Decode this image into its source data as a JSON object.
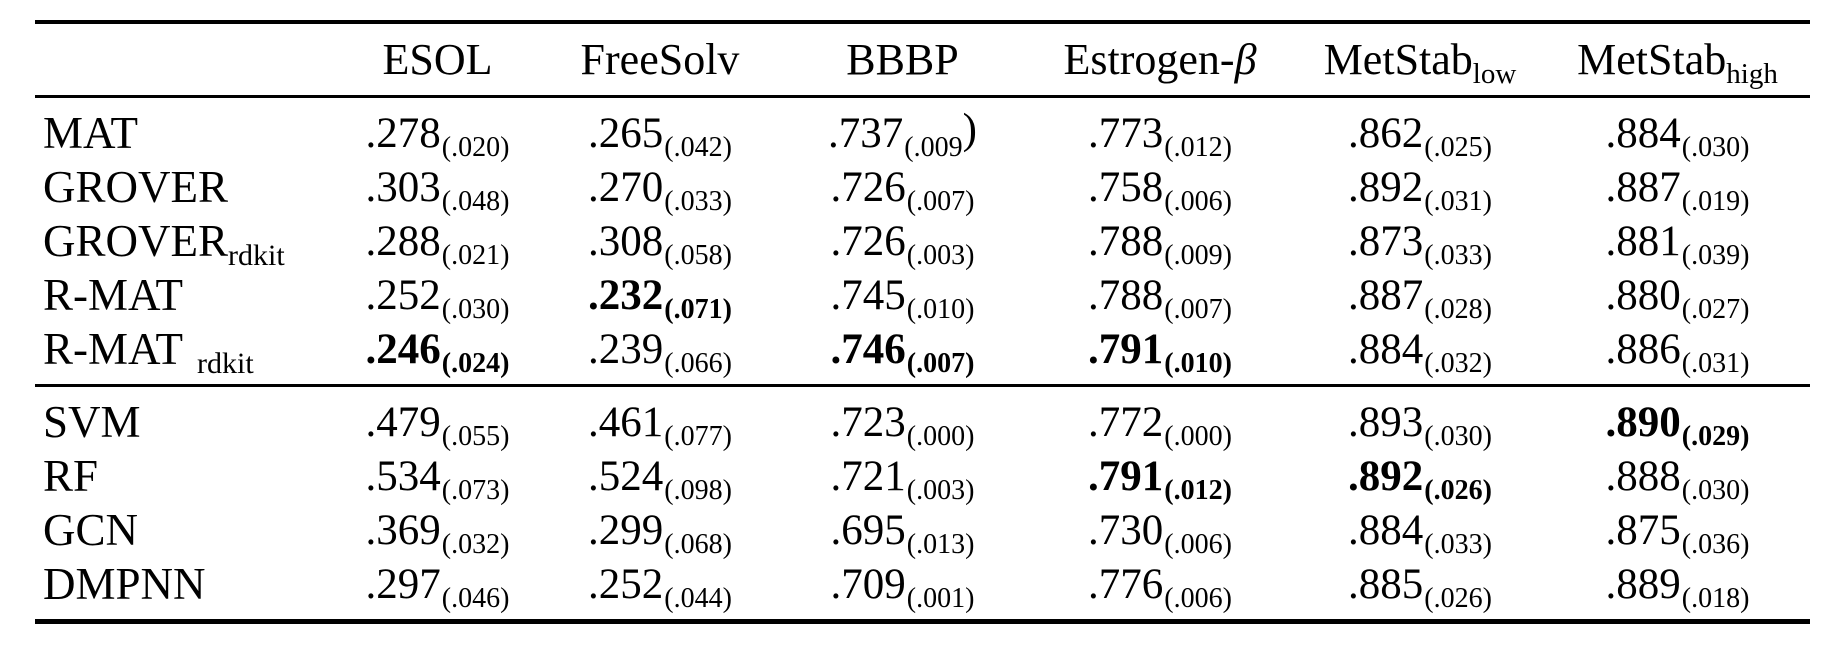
{
  "colors": {
    "text": "#000000",
    "background": "#ffffff",
    "rule": "#000000"
  },
  "table": {
    "headers": [
      {
        "label": ""
      },
      {
        "label": "ESOL"
      },
      {
        "label": "FreeSolv"
      },
      {
        "label": "BBBP"
      },
      {
        "label": "Estrogen-",
        "beta": "β"
      },
      {
        "label": "MetStab",
        "sub": "low"
      },
      {
        "label": "MetStab",
        "sub": "high"
      }
    ],
    "g1": [
      {
        "label": "MAT",
        "cells": [
          {
            "v": ".278",
            "s": "(.020)"
          },
          {
            "v": ".265",
            "s": "(.042)"
          },
          {
            "v": ".737",
            "s": "(.009",
            "t": ")"
          },
          {
            "v": ".773",
            "s": "(.012)"
          },
          {
            "v": ".862",
            "s": "(.025)"
          },
          {
            "v": ".884",
            "s": "(.030)"
          }
        ]
      },
      {
        "label": "GROVER",
        "cells": [
          {
            "v": ".303",
            "s": "(.048)"
          },
          {
            "v": ".270",
            "s": "(.033)"
          },
          {
            "v": ".726",
            "s": "(.007)"
          },
          {
            "v": ".758",
            "s": "(.006)"
          },
          {
            "v": ".892",
            "s": "(.031)"
          },
          {
            "v": ".887",
            "s": "(.019)"
          }
        ]
      },
      {
        "label": "GROVER",
        "sub": "rdkit",
        "cells": [
          {
            "v": ".288",
            "s": "(.021)"
          },
          {
            "v": ".308",
            "s": "(.058)"
          },
          {
            "v": ".726",
            "s": "(.003)"
          },
          {
            "v": ".788",
            "s": "(.009)"
          },
          {
            "v": ".873",
            "s": "(.033)"
          },
          {
            "v": ".881",
            "s": "(.039)"
          }
        ]
      },
      {
        "label": "R-MAT",
        "cells": [
          {
            "v": ".252",
            "s": "(.030)"
          },
          {
            "v": ".232",
            "s": "(.071)",
            "bold": true
          },
          {
            "v": ".745",
            "s": "(.010)"
          },
          {
            "v": ".788",
            "s": "(.007)"
          },
          {
            "v": ".887",
            "s": "(.028)"
          },
          {
            "v": ".880",
            "s": "(.027)"
          }
        ]
      },
      {
        "label": "R-MAT",
        "sub": "rdkit",
        "gap": true,
        "cells": [
          {
            "v": ".246",
            "s": "(.024)",
            "bold": true
          },
          {
            "v": ".239",
            "s": "(.066)"
          },
          {
            "v": ".746",
            "s": "(.007)",
            "bold": true
          },
          {
            "v": ".791",
            "s": "(.010)",
            "bold": true
          },
          {
            "v": ".884",
            "s": "(.032)"
          },
          {
            "v": ".886",
            "s": "(.031)"
          }
        ]
      }
    ],
    "g2": [
      {
        "label": "SVM",
        "cells": [
          {
            "v": ".479",
            "s": "(.055)"
          },
          {
            "v": ".461",
            "s": "(.077)"
          },
          {
            "v": ".723",
            "s": "(.000)"
          },
          {
            "v": ".772",
            "s": "(.000)"
          },
          {
            "v": ".893",
            "s": "(.030)"
          },
          {
            "v": ".890",
            "s": "(.029)",
            "bold": true
          }
        ]
      },
      {
        "label": "RF",
        "cells": [
          {
            "v": ".534",
            "s": "(.073)"
          },
          {
            "v": ".524",
            "s": "(.098)"
          },
          {
            "v": ".721",
            "s": "(.003)"
          },
          {
            "v": ".791",
            "s": "(.012)",
            "bold": true
          },
          {
            "v": ".892",
            "s": "(.026)",
            "bold": true
          },
          {
            "v": ".888",
            "s": "(.030)"
          }
        ]
      },
      {
        "label": "GCN",
        "cells": [
          {
            "v": ".369",
            "s": "(.032)"
          },
          {
            "v": ".299",
            "s": "(.068)"
          },
          {
            "v": ".695",
            "s": "(.013)"
          },
          {
            "v": ".730",
            "s": "(.006)"
          },
          {
            "v": ".884",
            "s": "(.033)"
          },
          {
            "v": ".875",
            "s": "(.036)"
          }
        ]
      },
      {
        "label": "DMPNN",
        "cells": [
          {
            "v": ".297",
            "s": "(.046)"
          },
          {
            "v": ".252",
            "s": "(.044)"
          },
          {
            "v": ".709",
            "s": "(.001)"
          },
          {
            "v": ".776",
            "s": "(.006)"
          },
          {
            "v": ".885",
            "s": "(.026)"
          },
          {
            "v": ".889",
            "s": "(.018)"
          }
        ]
      }
    ]
  }
}
